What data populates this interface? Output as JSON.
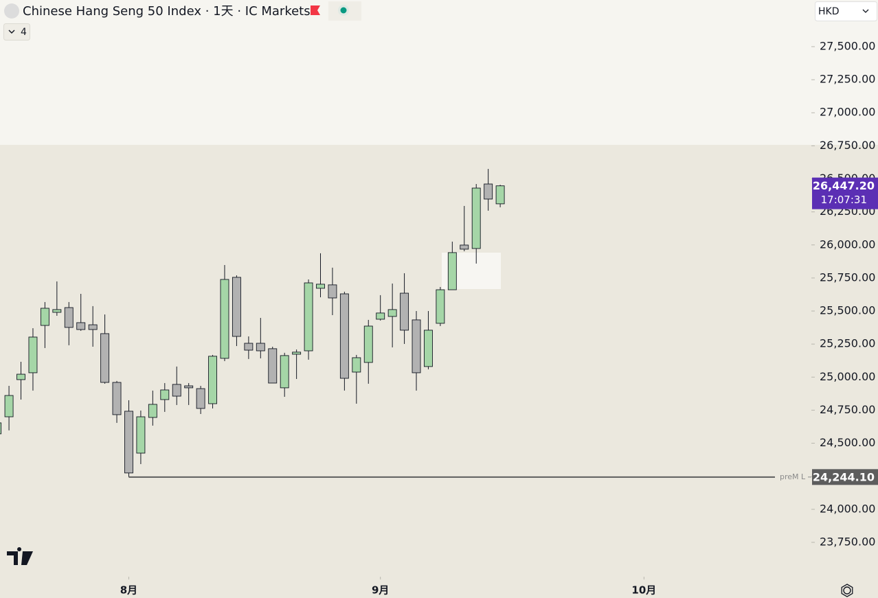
{
  "header": {
    "title": "Chinese Hang Seng 50 Index · 1天 · IC Markets",
    "indicator_count": 4,
    "currency": "HKD"
  },
  "chart_data": {
    "type": "candlestick",
    "x": [
      0,
      1,
      2,
      3,
      4,
      5,
      6,
      7,
      8,
      9,
      10,
      11,
      12,
      13,
      14,
      15,
      16,
      17,
      18,
      19,
      20,
      21,
      22,
      23,
      24,
      25,
      26,
      27,
      28,
      29,
      30,
      31,
      32,
      33,
      34,
      35,
      36,
      37,
      38,
      39,
      40,
      41,
      42
    ],
    "open": [
      24571,
      24700,
      24981,
      25033,
      25391,
      25490,
      25526,
      25412,
      25396,
      25329,
      24960,
      24742,
      24425,
      24695,
      24830,
      24945,
      24934,
      24913,
      24799,
      25142,
      25755,
      25256,
      25256,
      25215,
      24919,
      25173,
      25199,
      25672,
      25698,
      25630,
      25038,
      25111,
      25438,
      25459,
      25635,
      25433,
      25080,
      25407,
      25661,
      25999,
      25973,
      26461,
      26311
    ],
    "high": [
      24675,
      24934,
      25116,
      25370,
      25568,
      25724,
      25568,
      25630,
      25537,
      25474,
      24971,
      24825,
      24747,
      24898,
      24955,
      25080,
      24955,
      24934,
      25168,
      25848,
      25770,
      25308,
      25448,
      25230,
      25184,
      25209,
      25739,
      25937,
      25828,
      25646,
      25168,
      25433,
      25620,
      25708,
      25786,
      25500,
      25500,
      25682,
      26025,
      26295,
      26461,
      26575,
      26455
    ],
    "low": [
      24560,
      24597,
      24830,
      24898,
      25220,
      25464,
      25241,
      25350,
      25230,
      24950,
      24654,
      24244,
      24342,
      24633,
      24737,
      24789,
      24789,
      24721,
      24763,
      25121,
      25235,
      25137,
      25142,
      24955,
      24851,
      24986,
      25132,
      25604,
      25469,
      24898,
      24799,
      24950,
      25428,
      25225,
      25251,
      24898,
      25059,
      25386,
      25661,
      25952,
      25859,
      26259,
      26285
    ],
    "close": [
      24654,
      24861,
      25022,
      25303,
      25521,
      25511,
      25376,
      25360,
      25360,
      24960,
      24716,
      24275,
      24700,
      24794,
      24903,
      24856,
      24919,
      24763,
      25158,
      25739,
      25308,
      25204,
      25199,
      24955,
      25163,
      25189,
      25713,
      25703,
      25599,
      24991,
      25147,
      25386,
      25485,
      25511,
      25355,
      25033,
      25355,
      25661,
      25942,
      25968,
      26430,
      26347,
      26447.2
    ],
    "up_color": "#a5d6a7",
    "down_color": "#b2b2b2",
    "xlim": [
      0.25,
      67.97
    ],
    "xticks": [
      {
        "value": 11,
        "label": "8月"
      },
      {
        "value": 32,
        "label": "9月"
      },
      {
        "value": 54,
        "label": "10月"
      }
    ],
    "ylim": [
      23490,
      27853
    ],
    "yticks": [
      {
        "value": 23750,
        "label": "23,750.00"
      },
      {
        "value": 24000,
        "label": "24,000.00"
      },
      {
        "value": 24250,
        "label": "24,250.00"
      },
      {
        "value": 24500,
        "label": "24,500.00"
      },
      {
        "value": 24750,
        "label": "24,750.00"
      },
      {
        "value": 25000,
        "label": "25,000.00"
      },
      {
        "value": 25250,
        "label": "25,250.00"
      },
      {
        "value": 25500,
        "label": "25,500.00"
      },
      {
        "value": 25750,
        "label": "25,750.00"
      },
      {
        "value": 26000,
        "label": "26,000.00"
      },
      {
        "value": 26250,
        "label": "26,250.00"
      },
      {
        "value": 26500,
        "label": "26,500.00"
      },
      {
        "value": 26750,
        "label": "26,750.00"
      },
      {
        "value": 27000,
        "label": "27,000.00"
      },
      {
        "value": 27250,
        "label": "27,250.00"
      },
      {
        "value": 27500,
        "label": "27,500.00"
      }
    ],
    "grid": false,
    "levels": [
      {
        "name": "preM L",
        "value": 24244.1,
        "value_label": "24,244.10",
        "x_start": 11,
        "color": "#5d5d5d"
      }
    ],
    "last_price": {
      "value": 26447.2,
      "label": "26,447.20",
      "countdown": "17:07:31",
      "color": "#5b2fb4"
    }
  }
}
